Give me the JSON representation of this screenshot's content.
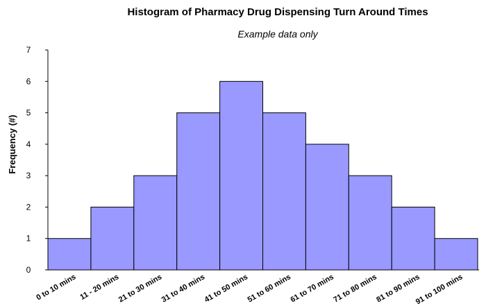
{
  "chart_data": {
    "type": "bar",
    "title": "Histogram of Pharmacy Drug Dispensing Turn Around Times",
    "subtitle": "Example data only",
    "ylabel": "Frequency (#)",
    "xlabel": "",
    "categories": [
      "0 to 10 mins",
      "11 - 20 mins",
      "21 to 30 mins",
      "31 to 40 mins",
      "41 to 50 mins",
      "51 to 60 mins",
      "61 to 70 mins",
      "71 to 80 mins",
      "81 to 90 mins",
      "91 to 100 mins"
    ],
    "values": [
      1,
      2,
      3,
      5,
      6,
      5,
      4,
      3,
      2,
      1
    ],
    "ylim": [
      0,
      7
    ],
    "yticks": [
      0,
      1,
      2,
      3,
      4,
      5,
      6,
      7
    ],
    "bar_color": "#9999ff",
    "grid": false,
    "legend": "none"
  }
}
